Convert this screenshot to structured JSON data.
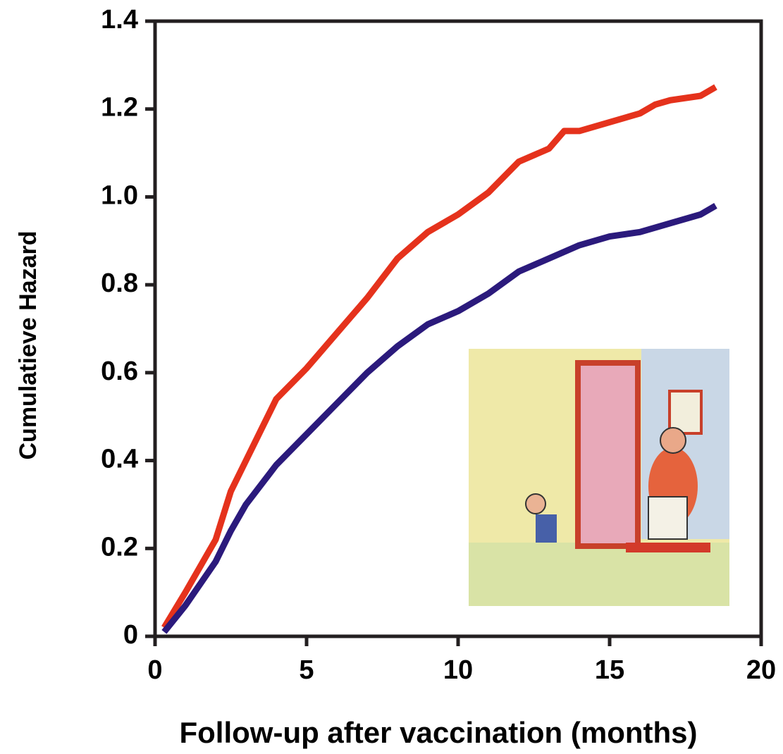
{
  "chart_data": {
    "type": "line",
    "x_label": "Follow-up after vaccination (months)",
    "y_label": "Cumulatieve Hazard",
    "xlim": [
      0,
      20
    ],
    "xticks": [
      0,
      5,
      10,
      15,
      20
    ],
    "ylim": [
      0,
      1.4
    ],
    "yticks": [
      0,
      0.2,
      0.4,
      0.6,
      0.8,
      {
        "value": 1,
        "label": "1.0"
      },
      1.2,
      1.4
    ],
    "series": [
      {
        "color": "#e5321c",
        "x": [
          0.3,
          1,
          2,
          2.5,
          3,
          3.5,
          4,
          5,
          6,
          7,
          8,
          9,
          10,
          11,
          12,
          13,
          13.5,
          14,
          15,
          16,
          16.5,
          17,
          18,
          18.5
        ],
        "values": [
          0.02,
          0.1,
          0.22,
          0.33,
          0.4,
          0.47,
          0.54,
          0.61,
          0.69,
          0.77,
          0.86,
          0.92,
          0.96,
          1.01,
          1.08,
          1.11,
          1.15,
          1.15,
          1.17,
          1.19,
          1.21,
          1.22,
          1.23,
          1.25
        ]
      },
      {
        "color": "#2b1a7c",
        "x": [
          0.3,
          1,
          2,
          2.5,
          3,
          4,
          5,
          6,
          7,
          8,
          9,
          10,
          11,
          12,
          13,
          14,
          15,
          16,
          17,
          18,
          18.5
        ],
        "values": [
          0.01,
          0.07,
          0.17,
          0.24,
          0.3,
          0.39,
          0.46,
          0.53,
          0.6,
          0.66,
          0.71,
          0.74,
          0.78,
          0.83,
          0.86,
          0.89,
          0.91,
          0.92,
          0.94,
          0.96,
          0.98
        ]
      }
    ]
  }
}
